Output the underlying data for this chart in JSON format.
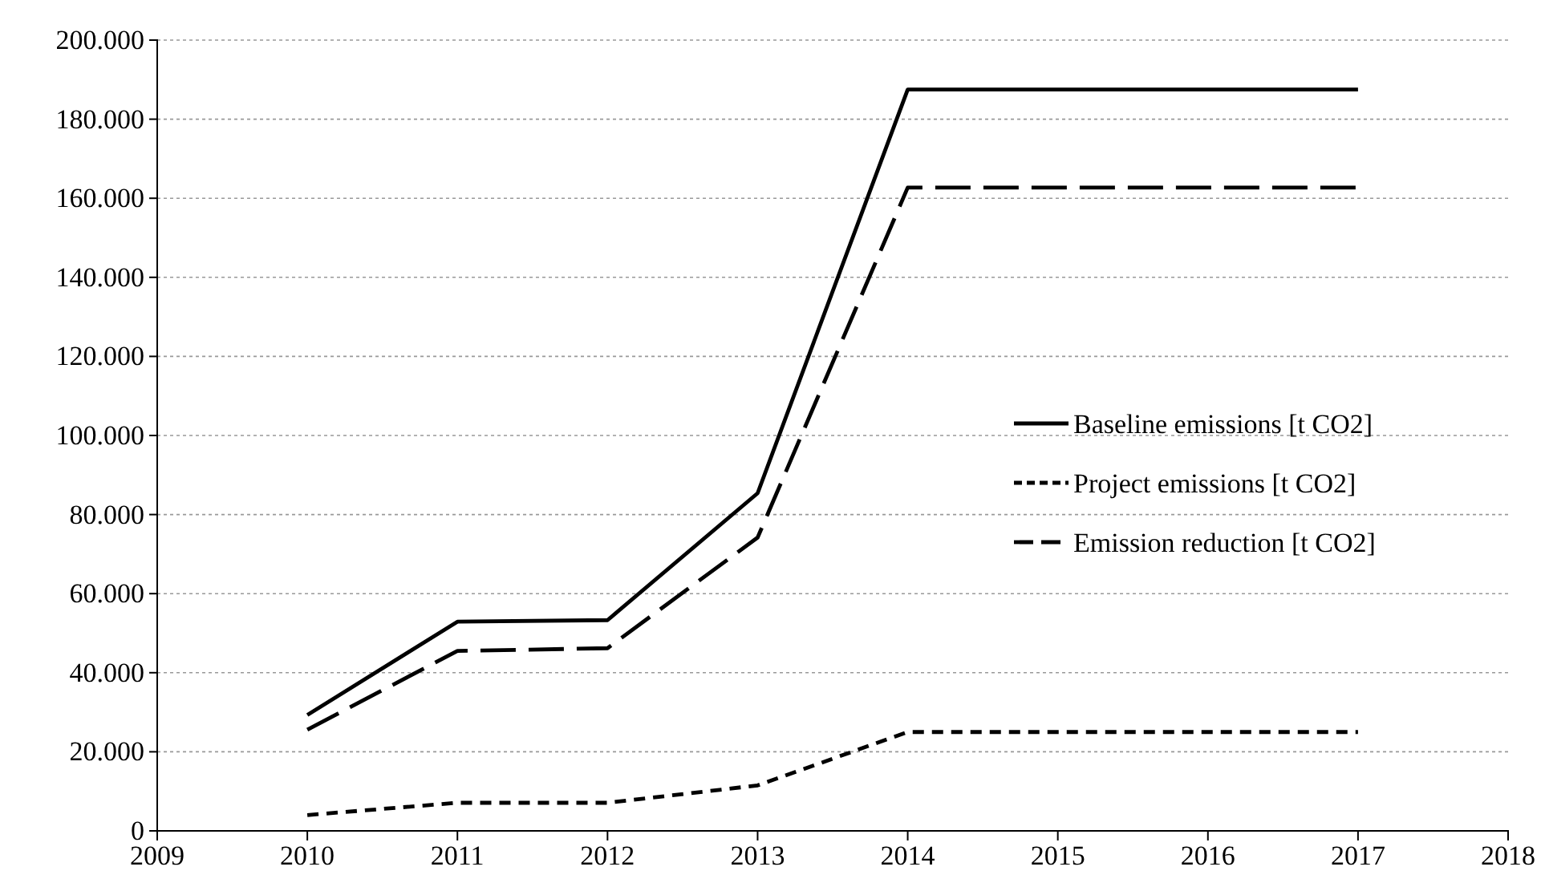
{
  "chart_data": {
    "type": "line",
    "x": [
      2010,
      2011,
      2012,
      2013,
      2014,
      2015,
      2016,
      2017
    ],
    "series": [
      {
        "name": "Baseline emissions [t CO2]",
        "color": "#000000",
        "line_style": "solid",
        "values": [
          29300,
          52900,
          53300,
          85400,
          187500,
          187500,
          187500,
          187500
        ]
      },
      {
        "name": "Project emissions [t CO2]",
        "color": "#000000",
        "line_style": "dotted",
        "values": [
          4000,
          7100,
          7100,
          11500,
          25000,
          25000,
          25000,
          25000
        ]
      },
      {
        "name": "Emission reduction [t CO2]",
        "color": "#000000",
        "line_style": "dashed",
        "values": [
          25600,
          45500,
          46200,
          74200,
          162700,
          162700,
          162700,
          162700
        ]
      }
    ],
    "xlim": [
      2009,
      2018
    ],
    "xticks": [
      2009,
      2010,
      2011,
      2012,
      2013,
      2014,
      2015,
      2016,
      2017,
      2018
    ],
    "ylim": [
      0,
      200000
    ],
    "yticks": [
      0,
      {
        "value": 20000,
        "label": "20.000"
      },
      {
        "value": 40000,
        "label": "40.000"
      },
      {
        "value": 60000,
        "label": "60.000"
      },
      {
        "value": 80000,
        "label": "80.000"
      },
      {
        "value": 100000,
        "label": "100.000"
      },
      {
        "value": 120000,
        "label": "120.000"
      },
      {
        "value": 140000,
        "label": "140.000"
      },
      {
        "value": 160000,
        "label": "160.000"
      },
      {
        "value": 180000,
        "label": "180.000"
      },
      {
        "value": 200000,
        "label": "200.000"
      }
    ],
    "grid": "y",
    "legend": "right",
    "marker": "none"
  }
}
